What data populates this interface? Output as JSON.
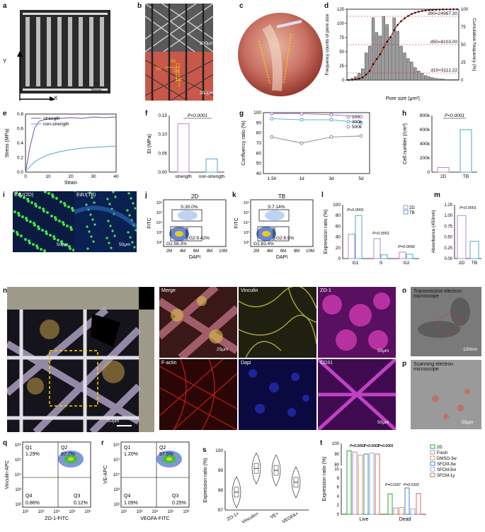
{
  "panels": {
    "a": {
      "label": "a",
      "axis_y": "Y",
      "axis_x": "X",
      "scale": "2mm"
    },
    "b": {
      "label": "b",
      "scale_top": "200μm",
      "scale_bottom": "200μm",
      "marks": [
        "Dc",
        "Dc",
        "Da",
        "Db"
      ]
    },
    "c": {
      "label": "c"
    },
    "d": {
      "label": "d",
      "d90": "d90=24967.30",
      "d50": "d50=8103.00",
      "d10": "d10=3112.22"
    },
    "e": {
      "label": "e"
    },
    "f": {
      "label": "f",
      "pval": "P<0.0001"
    },
    "g": {
      "label": "g"
    },
    "h": {
      "label": "h",
      "pval": "P<0.0001"
    },
    "i": {
      "label": "i",
      "left_title": "EdU(2D)",
      "right_title": "EdU(TB)",
      "scale_left": "50μm",
      "scale_right": "50μm"
    },
    "j": {
      "label": "j",
      "title": "2D",
      "xlabel": "DAPI",
      "ylabel": "FITC",
      "gate_s": "S:30.0%",
      "gate_g1": "G1:58.3%",
      "gate_g2": "G2:9.42%"
    },
    "k": {
      "label": "k",
      "title": "TB",
      "xlabel": "DAPI",
      "ylabel": "FITC",
      "gate_s": "S:7.14%",
      "gate_g1": "G1:83.4%",
      "gate_g2": "G2:6.5%"
    },
    "l": {
      "label": "l",
      "pvals": [
        "P<0.0001",
        "P<0.0001",
        "P=0.0056"
      ]
    },
    "m": {
      "label": "m",
      "pval": "P<0.0001"
    },
    "n": {
      "label": "n",
      "scale": "50μm",
      "tiles": [
        "Merge",
        "Vinculin",
        "ZO-1",
        "F-actin",
        "Dapi",
        "CD31"
      ],
      "scale_merge": "25μm",
      "scale_zo1": "50μm",
      "scale_cd31": "50μm"
    },
    "o": {
      "label": "o",
      "title": "Transmission electron microscope",
      "scale": "100nm"
    },
    "p": {
      "label": "p",
      "title": "Scanning electron microscope",
      "scale": "50μm"
    },
    "q": {
      "label": "q",
      "ylabel": "Vinculin-APC",
      "xlabel": "ZO-1-FITC",
      "Q1": "Q1",
      "Q1v": "1.29%",
      "Q2": "Q2",
      "Q2v": "97.7%",
      "Q3": "Q3",
      "Q3v": "0.12%",
      "Q4": "Q4",
      "Q4v": "0.86%"
    },
    "r": {
      "label": "r",
      "ylabel": "VE-APC",
      "xlabel": "VEGFA-FITC",
      "Q1": "Q1",
      "Q1v": "1.20%",
      "Q2": "Q2",
      "Q2v": "97.5%",
      "Q3": "Q3",
      "Q3v": "0.25%",
      "Q4": "Q4",
      "Q4v": "1.09%"
    },
    "s": {
      "label": "s"
    },
    "t": {
      "label": "t",
      "pvals_top": [
        "P<0.0001",
        "P<0.0001",
        "P<0.0001",
        "P<0.0001",
        "P<0.0001",
        "P<0.0001"
      ],
      "pvals_dead": [
        "P=0.0187",
        "P=0.0393"
      ]
    }
  },
  "chart_data": [
    {
      "id": "d",
      "type": "bar",
      "title": "",
      "xlabel": "Pore size (μm²)",
      "ylabel": "Frequency counts of pore size",
      "y2label": "Cumulative frequency (%)",
      "ylim": [
        0,
        125
      ],
      "y2lim": [
        0,
        100
      ],
      "yticks": [
        0,
        25,
        50,
        75,
        100,
        125
      ],
      "y2ticks": [
        0,
        25,
        50,
        75,
        100
      ],
      "values": [
        1,
        3,
        6,
        12,
        20,
        48,
        60,
        110,
        84,
        78,
        112,
        98,
        76,
        110,
        86,
        60,
        48,
        38,
        32,
        22,
        16,
        12,
        8,
        6,
        4,
        3,
        2,
        2,
        1,
        1,
        1,
        1
      ]
    },
    {
      "id": "e",
      "type": "line",
      "xlabel": "Strain",
      "ylabel": "Stress (MPa)",
      "xlim": [
        0,
        40
      ],
      "ylim": [
        0,
        0.8
      ],
      "xticks": [
        0,
        10,
        20,
        30,
        40
      ],
      "yticks": [
        0.0,
        0.2,
        0.4,
        0.6,
        0.8
      ],
      "series": [
        {
          "name": "strength",
          "color": "#7b4f9e",
          "x": [
            0,
            2,
            4,
            6,
            8,
            10,
            15,
            20,
            25,
            30,
            35,
            40
          ],
          "y": [
            0,
            0.35,
            0.6,
            0.7,
            0.72,
            0.73,
            0.74,
            0.75,
            0.74,
            0.76,
            0.75,
            0.76
          ]
        },
        {
          "name": "non-strength",
          "color": "#4fa7c9",
          "x": [
            0,
            2,
            4,
            6,
            8,
            10,
            15,
            20,
            25,
            30,
            35,
            40
          ],
          "y": [
            0,
            0.08,
            0.14,
            0.18,
            0.21,
            0.24,
            0.28,
            0.31,
            0.33,
            0.34,
            0.35,
            0.36
          ]
        }
      ]
    },
    {
      "id": "f",
      "type": "bar",
      "ylabel": "Et (MPa)",
      "categories": [
        "strength",
        "non-strength"
      ],
      "values": [
        0.128,
        0.035
      ],
      "ylim": [
        0,
        0.15
      ],
      "yticks": [
        0.0,
        0.05,
        0.1,
        0.15
      ],
      "colors": [
        "#b08ac9",
        "#4fa7c9"
      ]
    },
    {
      "id": "g",
      "type": "line",
      "ylabel": "Confluency ratio (%)",
      "categories": [
        "1.5h",
        "1d",
        "3d",
        "5d"
      ],
      "ylim": [
        40,
        100
      ],
      "yticks": [
        40,
        50,
        60,
        70,
        80,
        90,
        100
      ],
      "series": [
        {
          "name": "100k",
          "color": "#888888",
          "values": [
            76,
            70,
            76,
            77
          ]
        },
        {
          "name": "300k",
          "color": "#4fa7c9",
          "values": [
            94,
            93,
            93,
            90
          ]
        },
        {
          "name": "500k",
          "color": "#a06ec0",
          "values": [
            99,
            99,
            98,
            96
          ]
        }
      ]
    },
    {
      "id": "h",
      "type": "bar",
      "ylabel": "Cell number (/cm²)",
      "categories": [
        "2D",
        "TB"
      ],
      "values": [
        65000,
        600000
      ],
      "yticks": [
        "0",
        "200k",
        "400k",
        "600k",
        "800k"
      ],
      "colors": [
        "#b08ac9",
        "#4fa7c9"
      ]
    },
    {
      "id": "l",
      "type": "bar",
      "ylabel": "Expression ratio (%)",
      "categories": [
        "G1",
        "S",
        "G2"
      ],
      "ylim": [
        0,
        100
      ],
      "yticks": [
        0,
        20,
        40,
        60,
        80,
        100
      ],
      "series": [
        {
          "name": "2D",
          "color": "#b08ac9",
          "values": [
            45,
            37,
            12
          ]
        },
        {
          "name": "TB",
          "color": "#4fa7c9",
          "values": [
            80,
            7,
            8
          ]
        }
      ]
    },
    {
      "id": "m",
      "type": "bar",
      "ylabel": "Absorbance (450nm)",
      "categories": [
        "2D",
        "TB"
      ],
      "values": [
        1.0,
        0.4
      ],
      "ylim": [
        0,
        1.25
      ],
      "yticks": [
        0.0,
        0.25,
        0.5,
        0.75,
        1.0,
        1.25
      ],
      "colors": [
        "#b08ac9",
        "#4fa7c9"
      ]
    },
    {
      "id": "s",
      "type": "violin",
      "ylabel": "Expression ratio (%)",
      "categories": [
        "ZO-1+",
        "Vinculin+",
        "VE+",
        "VEGFA+"
      ],
      "ylim": [
        97,
        100
      ],
      "yticks": [
        97,
        98,
        99,
        100
      ],
      "medians": [
        97.9,
        99.1,
        99.0,
        98.4
      ]
    },
    {
      "id": "t",
      "type": "bar",
      "ylabel": "Expression ratio (%)",
      "categories": [
        "Live",
        "Dead"
      ],
      "yticks": [
        "0",
        "2",
        "4",
        "6",
        "8",
        "10",
        "80",
        "90",
        "100"
      ],
      "series": [
        {
          "name": "2D",
          "color": "#2ca02c",
          "values": [
            93,
            4.5
          ]
        },
        {
          "name": "Fresh",
          "color": "#b08ac9",
          "values": [
            92,
            1.4
          ]
        },
        {
          "name": "DMSO-3w",
          "color": "#d5a04a",
          "values": [
            89,
            1.5
          ]
        },
        {
          "name": "SFCM-3w",
          "color": "#4f7fc9",
          "values": [
            90,
            5.8
          ]
        },
        {
          "name": "SFCM-5m",
          "color": "#8ab4d9",
          "values": [
            91,
            1.2
          ]
        },
        {
          "name": "SFCM-1y",
          "color": "#d96b6b",
          "values": [
            90,
            4.6
          ]
        }
      ]
    }
  ]
}
